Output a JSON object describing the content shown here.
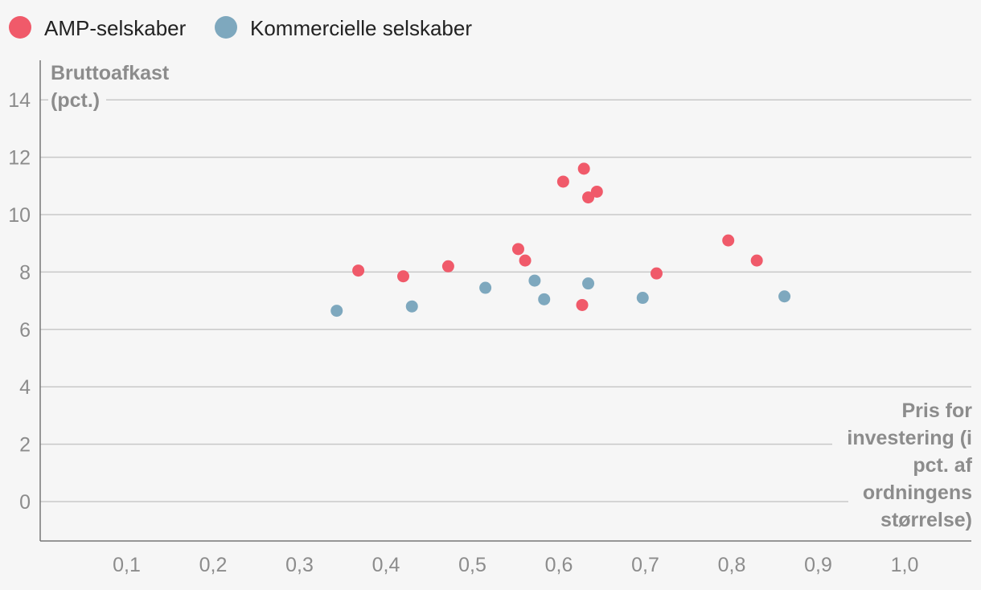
{
  "chart_data": {
    "type": "scatter",
    "title": "",
    "ylabel_lines": [
      "Bruttoafkast",
      "(pct.)"
    ],
    "xlabel_lines": [
      "Pris for",
      "investering (i",
      "pct. af",
      "ordningens",
      "størrelse)"
    ],
    "xlim": [
      0.0,
      1.08
    ],
    "ylim": [
      -1.4,
      15
    ],
    "x_ticks": [
      0.1,
      0.2,
      0.3,
      0.4,
      0.5,
      0.6,
      0.7,
      0.8,
      0.9,
      1.0
    ],
    "x_tick_labels": [
      "0,1",
      "0,2",
      "0,3",
      "0,4",
      "0,5",
      "0,6",
      "0,7",
      "0,8",
      "0,9",
      "1,0"
    ],
    "y_ticks": [
      0,
      2,
      4,
      6,
      8,
      10,
      12,
      14
    ],
    "y_tick_labels": [
      "0",
      "2",
      "4",
      "6",
      "8",
      "10",
      "12",
      "14"
    ],
    "grid": true,
    "legend_position": "top-left",
    "series": [
      {
        "name": "AMP-selskaber",
        "color": "#f05a6a",
        "points": [
          {
            "x": 0.368,
            "y": 8.05
          },
          {
            "x": 0.42,
            "y": 7.85
          },
          {
            "x": 0.472,
            "y": 8.2
          },
          {
            "x": 0.553,
            "y": 8.8
          },
          {
            "x": 0.561,
            "y": 8.4
          },
          {
            "x": 0.605,
            "y": 11.15
          },
          {
            "x": 0.629,
            "y": 11.6
          },
          {
            "x": 0.634,
            "y": 10.6
          },
          {
            "x": 0.644,
            "y": 10.8
          },
          {
            "x": 0.627,
            "y": 6.85
          },
          {
            "x": 0.713,
            "y": 7.95
          },
          {
            "x": 0.796,
            "y": 9.1
          },
          {
            "x": 0.829,
            "y": 8.4
          }
        ]
      },
      {
        "name": "Kommercielle selskaber",
        "color": "#7ea8be",
        "points": [
          {
            "x": 0.343,
            "y": 6.65
          },
          {
            "x": 0.43,
            "y": 6.8
          },
          {
            "x": 0.515,
            "y": 7.45
          },
          {
            "x": 0.572,
            "y": 7.7
          },
          {
            "x": 0.583,
            "y": 7.05
          },
          {
            "x": 0.634,
            "y": 7.6
          },
          {
            "x": 0.697,
            "y": 7.1
          },
          {
            "x": 0.861,
            "y": 7.15
          }
        ]
      }
    ]
  }
}
